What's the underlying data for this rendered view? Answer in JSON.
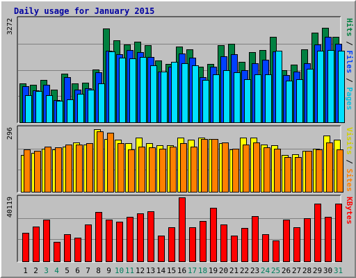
{
  "chart_data": [
    {
      "type": "bar",
      "title": "Daily usage for January 2015",
      "categories": [
        "1",
        "2",
        "3",
        "4",
        "5",
        "6",
        "7",
        "8",
        "9",
        "10",
        "11",
        "12",
        "13",
        "14",
        "15",
        "16",
        "17",
        "18",
        "19",
        "20",
        "21",
        "22",
        "23",
        "24",
        "25",
        "26",
        "27",
        "28",
        "29",
        "30",
        "31"
      ],
      "weekend_days": [
        "3",
        "4",
        "10",
        "11",
        "17",
        "18",
        "24",
        "25",
        "31"
      ],
      "ymax_label": "3272",
      "ylim": [
        0,
        3272
      ],
      "legend": [
        "Pages",
        "Files",
        "Hits"
      ],
      "series": [
        {
          "name": "Hits",
          "color": "#008040",
          "values": [
            1230,
            1190,
            1340,
            1040,
            1540,
            1230,
            1260,
            1660,
            2970,
            2600,
            2450,
            2550,
            2430,
            1960,
            1850,
            2400,
            2300,
            1750,
            1850,
            2430,
            2480,
            1920,
            2210,
            2280,
            2700,
            1650,
            1820,
            2310,
            2830,
            2990,
            2710
          ]
        },
        {
          "name": "Files",
          "color": "#0040ff",
          "values": [
            1150,
            1000,
            1180,
            700,
            1420,
            1040,
            1080,
            1580,
            2260,
            2160,
            2280,
            2210,
            2060,
            1610,
            1750,
            2170,
            2050,
            1430,
            1750,
            2090,
            2150,
            1650,
            1870,
            1980,
            2230,
            1500,
            1610,
            1870,
            2460,
            2710,
            2480
          ]
        },
        {
          "name": "Pages",
          "color": "#00e0ff",
          "values": [
            860,
            980,
            860,
            690,
            720,
            910,
            1040,
            1240,
            2240,
            2050,
            2020,
            2060,
            1790,
            1610,
            1910,
            1860,
            1790,
            1340,
            1520,
            1640,
            1580,
            1370,
            1520,
            1510,
            2260,
            1310,
            1360,
            1700,
            2260,
            2280,
            2260
          ]
        }
      ]
    },
    {
      "type": "bar",
      "categories": [
        "1",
        "2",
        "3",
        "4",
        "5",
        "6",
        "7",
        "8",
        "9",
        "10",
        "11",
        "12",
        "13",
        "14",
        "15",
        "16",
        "17",
        "18",
        "19",
        "20",
        "21",
        "22",
        "23",
        "24",
        "25",
        "26",
        "27",
        "28",
        "29",
        "30",
        "31"
      ],
      "ymax_label": "296",
      "ylim": [
        0,
        296
      ],
      "legend": [
        "Sites",
        "Visits"
      ],
      "series": [
        {
          "name": "Visits",
          "color": "#ffff00",
          "values": [
            170,
            180,
            200,
            195,
            210,
            230,
            220,
            288,
            245,
            240,
            225,
            250,
            225,
            215,
            215,
            250,
            240,
            250,
            245,
            225,
            195,
            250,
            250,
            220,
            215,
            170,
            175,
            190,
            200,
            260,
            240
          ]
        },
        {
          "name": "Sites",
          "color": "#ff8000",
          "values": [
            195,
            190,
            210,
            205,
            220,
            220,
            225,
            280,
            275,
            225,
            195,
            210,
            205,
            200,
            210,
            225,
            210,
            245,
            245,
            230,
            200,
            220,
            230,
            205,
            200,
            160,
            160,
            190,
            195,
            230,
            195
          ]
        }
      ]
    },
    {
      "type": "bar",
      "categories": [
        "1",
        "2",
        "3",
        "4",
        "5",
        "6",
        "7",
        "8",
        "9",
        "10",
        "11",
        "12",
        "13",
        "14",
        "15",
        "16",
        "17",
        "18",
        "19",
        "20",
        "21",
        "22",
        "23",
        "24",
        "25",
        "26",
        "27",
        "28",
        "29",
        "30",
        "31"
      ],
      "ymax_label": "40119",
      "ylim": [
        0,
        40119
      ],
      "legend": [
        "KBytes"
      ],
      "series": [
        {
          "name": "KBytes",
          "color": "#ff0000",
          "values": [
            18000,
            22000,
            26000,
            12000,
            17000,
            15000,
            23000,
            31000,
            26000,
            25000,
            28000,
            30000,
            31500,
            16000,
            21500,
            40119,
            21500,
            25500,
            33500,
            23000,
            16000,
            21000,
            28500,
            17000,
            13000,
            26000,
            21500,
            27000,
            36000,
            28000,
            36000
          ]
        }
      ]
    }
  ]
}
